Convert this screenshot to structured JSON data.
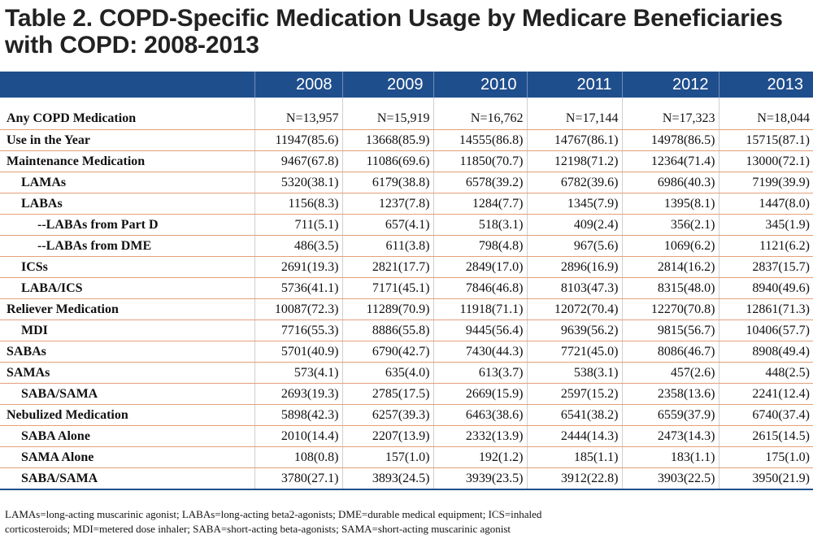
{
  "title": {
    "line1": "Table 2. COPD-Specific Medication Usage by Medicare Beneficiaries",
    "line2": "with COPD: 2008-2013"
  },
  "years": [
    "2008",
    "2009",
    "2010",
    "2011",
    "2012",
    "2013"
  ],
  "rows": [
    {
      "label": "Any COPD Medication",
      "indent": 0,
      "cells": [
        "N=13,957",
        "N=15,919",
        "N=16,762",
        "N=17,144",
        "N=17,323",
        "N=18,044"
      ]
    },
    {
      "label": "Use in the Year",
      "indent": 0,
      "cells": [
        "11947(85.6)",
        "13668(85.9)",
        "14555(86.8)",
        "14767(86.1)",
        "14978(86.5)",
        "15715(87.1)"
      ]
    },
    {
      "label": "Maintenance Medication",
      "indent": 0,
      "cells": [
        "9467(67.8)",
        "11086(69.6)",
        "11850(70.7)",
        "12198(71.2)",
        "12364(71.4)",
        "13000(72.1)"
      ]
    },
    {
      "label": "LAMAs",
      "indent": 1,
      "cells": [
        "5320(38.1)",
        "6179(38.8)",
        "6578(39.2)",
        "6782(39.6)",
        "6986(40.3)",
        "7199(39.9)"
      ]
    },
    {
      "label": "LABAs",
      "indent": 1,
      "cells": [
        "1156(8.3)",
        "1237(7.8)",
        "1284(7.7)",
        "1345(7.9)",
        "1395(8.1)",
        "1447(8.0)"
      ]
    },
    {
      "label": "--LABAs from Part D",
      "indent": 2,
      "cells": [
        "711(5.1)",
        "657(4.1)",
        "518(3.1)",
        "409(2.4)",
        "356(2.1)",
        "345(1.9)"
      ]
    },
    {
      "label": "--LABAs from  DME",
      "indent": 2,
      "cells": [
        "486(3.5)",
        "611(3.8)",
        "798(4.8)",
        "967(5.6)",
        "1069(6.2)",
        "1121(6.2)"
      ]
    },
    {
      "label": "ICSs",
      "indent": 1,
      "cells": [
        "2691(19.3)",
        "2821(17.7)",
        "2849(17.0)",
        "2896(16.9)",
        "2814(16.2)",
        "2837(15.7)"
      ]
    },
    {
      "label": "LABA/ICS",
      "indent": 1,
      "cells": [
        "5736(41.1)",
        "7171(45.1)",
        "7846(46.8)",
        "8103(47.3)",
        "8315(48.0)",
        "8940(49.6)"
      ]
    },
    {
      "label": "Reliever Medication",
      "indent": 0,
      "cells": [
        "10087(72.3)",
        "11289(70.9)",
        "11918(71.1)",
        "12072(70.4)",
        "12270(70.8)",
        "12861(71.3)"
      ]
    },
    {
      "label": "MDI",
      "indent": 1,
      "cells": [
        "7716(55.3)",
        "8886(55.8)",
        "9445(56.4)",
        "9639(56.2)",
        "9815(56.7)",
        "10406(57.7)"
      ]
    },
    {
      "label": "SABAs",
      "indent": 0,
      "cells": [
        "5701(40.9)",
        "6790(42.7)",
        "7430(44.3)",
        "7721(45.0)",
        "8086(46.7)",
        "8908(49.4)"
      ]
    },
    {
      "label": "SAMAs",
      "indent": 0,
      "cells": [
        "573(4.1)",
        "635(4.0)",
        "613(3.7)",
        "538(3.1)",
        "457(2.6)",
        "448(2.5)"
      ]
    },
    {
      "label": "SABA/SAMA",
      "indent": 1,
      "cells": [
        "2693(19.3)",
        "2785(17.5)",
        "2669(15.9)",
        "2597(15.2)",
        "2358(13.6)",
        "2241(12.4)"
      ]
    },
    {
      "label": "Nebulized Medication",
      "indent": 0,
      "cells": [
        "5898(42.3)",
        "6257(39.3)",
        "6463(38.6)",
        "6541(38.2)",
        "6559(37.9)",
        "6740(37.4)"
      ]
    },
    {
      "label": "SABA Alone",
      "indent": 1,
      "cells": [
        "2010(14.4)",
        "2207(13.9)",
        "2332(13.9)",
        "2444(14.3)",
        "2473(14.3)",
        "2615(14.5)"
      ]
    },
    {
      "label": "SAMA Alone",
      "indent": 1,
      "cells": [
        "108(0.8)",
        "157(1.0)",
        "192(1.2)",
        "185(1.1)",
        "183(1.1)",
        "175(1.0)"
      ]
    },
    {
      "label": "SABA/SAMA",
      "indent": 1,
      "cells": [
        "3780(27.1)",
        "3893(24.5)",
        "3939(23.5)",
        "3912(22.8)",
        "3903(22.5)",
        "3950(21.9)"
      ]
    }
  ],
  "footnote": {
    "line1": "LAMAs=long-acting muscarinic agonist; LABAs=long-acting beta2-agonists; DME=durable medical equipment; ICS=inhaled",
    "line2": "corticosteroids; MDI=metered dose inhaler; SABA=short-acting beta-agonists; SAMA=short-acting muscarinic agonist"
  },
  "colors": {
    "header_bg": "#1f4e8c",
    "row_rule": "#e3a07a"
  }
}
